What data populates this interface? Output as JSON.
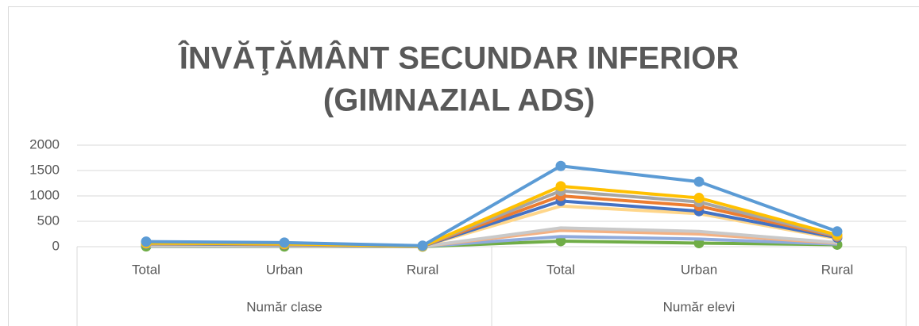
{
  "chart_data": {
    "type": "line",
    "title": [
      "ÎNVĂŢĂMÂNT SECUNDAR INFERIOR",
      "(GIMNAZIAL ADS)"
    ],
    "category_groups": [
      {
        "name": "Număr clase",
        "categories": [
          "Total",
          "Urban",
          "Rural"
        ]
      },
      {
        "name": "Număr elevi",
        "categories": [
          "Total",
          "Urban",
          "Rural"
        ]
      }
    ],
    "ylim": [
      0,
      2000
    ],
    "yticks": [
      0,
      500,
      1000,
      1500,
      2000
    ],
    "grid": true,
    "series": [
      {
        "color": "#70AD47",
        "marker": true,
        "values": [
          5,
          4,
          1,
          110,
          70,
          40
        ]
      },
      {
        "color": "#8FAADC",
        "marker": false,
        "values": [
          10,
          8,
          3,
          200,
          150,
          50
        ]
      },
      {
        "color": "#F4B183",
        "marker": false,
        "values": [
          18,
          14,
          4,
          320,
          250,
          70
        ]
      },
      {
        "color": "#C9C9C9",
        "marker": false,
        "values": [
          20,
          15,
          5,
          370,
          300,
          80
        ]
      },
      {
        "color": "#FFD68A",
        "marker": false,
        "values": [
          50,
          40,
          8,
          800,
          650,
          160
        ]
      },
      {
        "color": "#4472C4",
        "marker": true,
        "values": [
          55,
          40,
          8,
          900,
          700,
          180
        ]
      },
      {
        "color": "#ED7D31",
        "marker": true,
        "values": [
          60,
          45,
          10,
          1000,
          800,
          200
        ]
      },
      {
        "color": "#A5A5A5",
        "marker": true,
        "values": [
          60,
          50,
          10,
          1100,
          880,
          210
        ]
      },
      {
        "color": "#FFC000",
        "marker": true,
        "values": [
          70,
          55,
          10,
          1190,
          960,
          230
        ]
      },
      {
        "color": "#5B9BD5",
        "marker": true,
        "values": [
          100,
          80,
          20,
          1590,
          1280,
          300
        ]
      }
    ]
  }
}
